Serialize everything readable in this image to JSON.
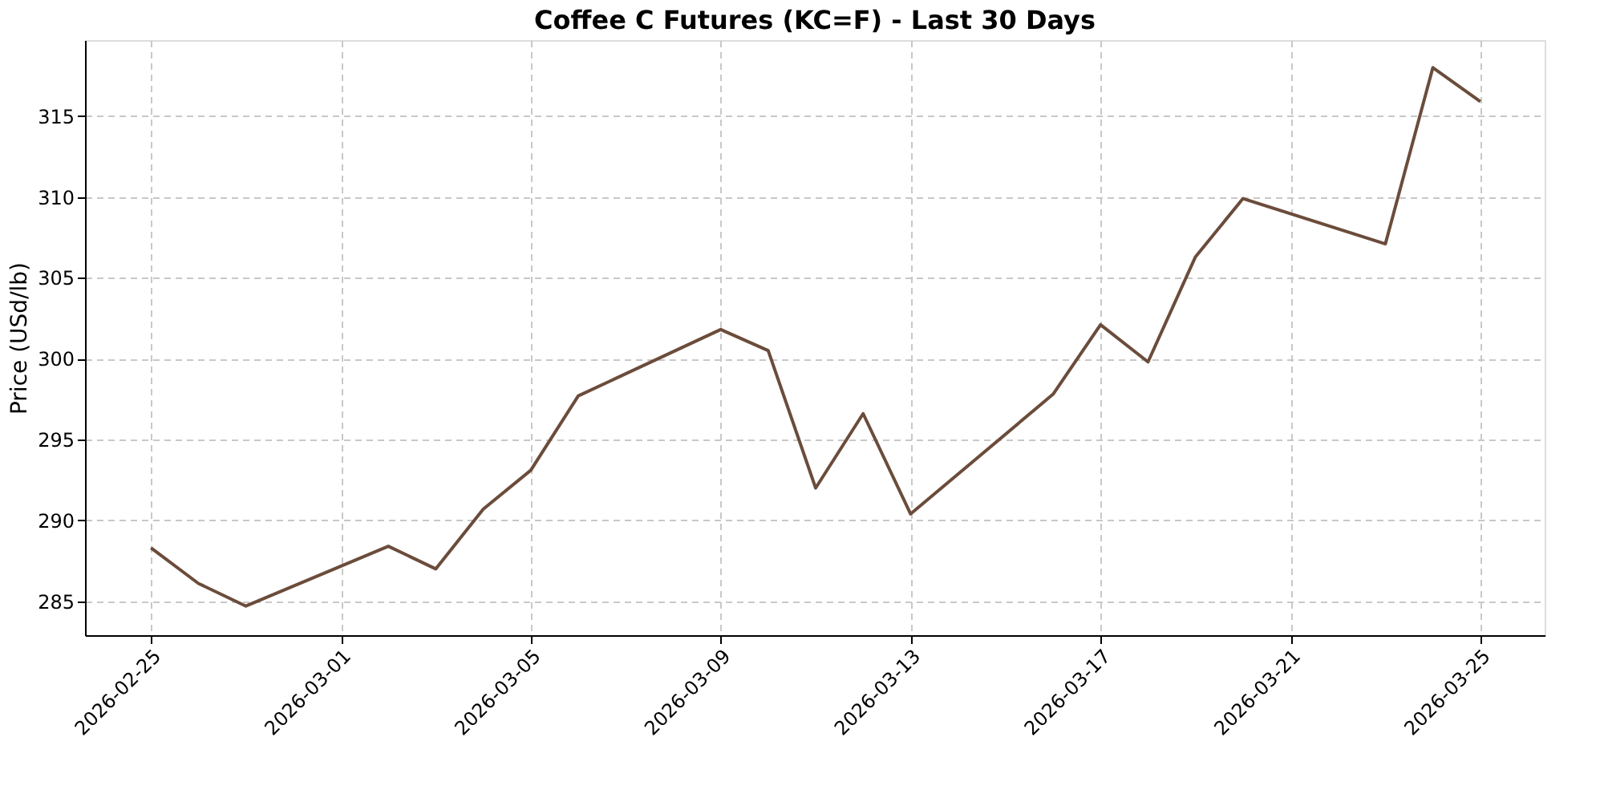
{
  "chart_data": {
    "type": "line",
    "title": "Coffee C Futures (KC=F) - Last 30 Days",
    "ylabel": "Price (USd/lb)",
    "x": [
      "2026-02-25",
      "2026-02-26",
      "2026-02-27",
      "2026-03-02",
      "2026-03-03",
      "2026-03-04",
      "2026-03-05",
      "2026-03-06",
      "2026-03-09",
      "2026-03-10",
      "2026-03-11",
      "2026-03-12",
      "2026-03-13",
      "2026-03-16",
      "2026-03-17",
      "2026-03-18",
      "2026-03-19",
      "2026-03-20",
      "2026-03-23",
      "2026-03-24",
      "2026-03-25"
    ],
    "series": [
      {
        "color": "#6b4c3b",
        "values": [
          288.3,
          286.1,
          284.7,
          288.4,
          287.0,
          290.7,
          293.1,
          297.7,
          301.8,
          300.5,
          292.0,
          296.6,
          290.4,
          297.8,
          302.1,
          299.8,
          306.3,
          309.9,
          307.1,
          318.0,
          315.9
        ]
      }
    ],
    "xlim": [
      "2026-02-23T14:40",
      "2026-03-26T08:30"
    ],
    "xticks": [
      "2026-02-25",
      "2026-03-01",
      "2026-03-05",
      "2026-03-09",
      "2026-03-13",
      "2026-03-17",
      "2026-03-21",
      "2026-03-25"
    ],
    "ylim": [
      282.9,
      319.7
    ],
    "yticks": [
      285,
      290,
      295,
      300,
      305,
      310,
      315
    ],
    "grid": true,
    "line_style": "solid",
    "marker": "none"
  }
}
